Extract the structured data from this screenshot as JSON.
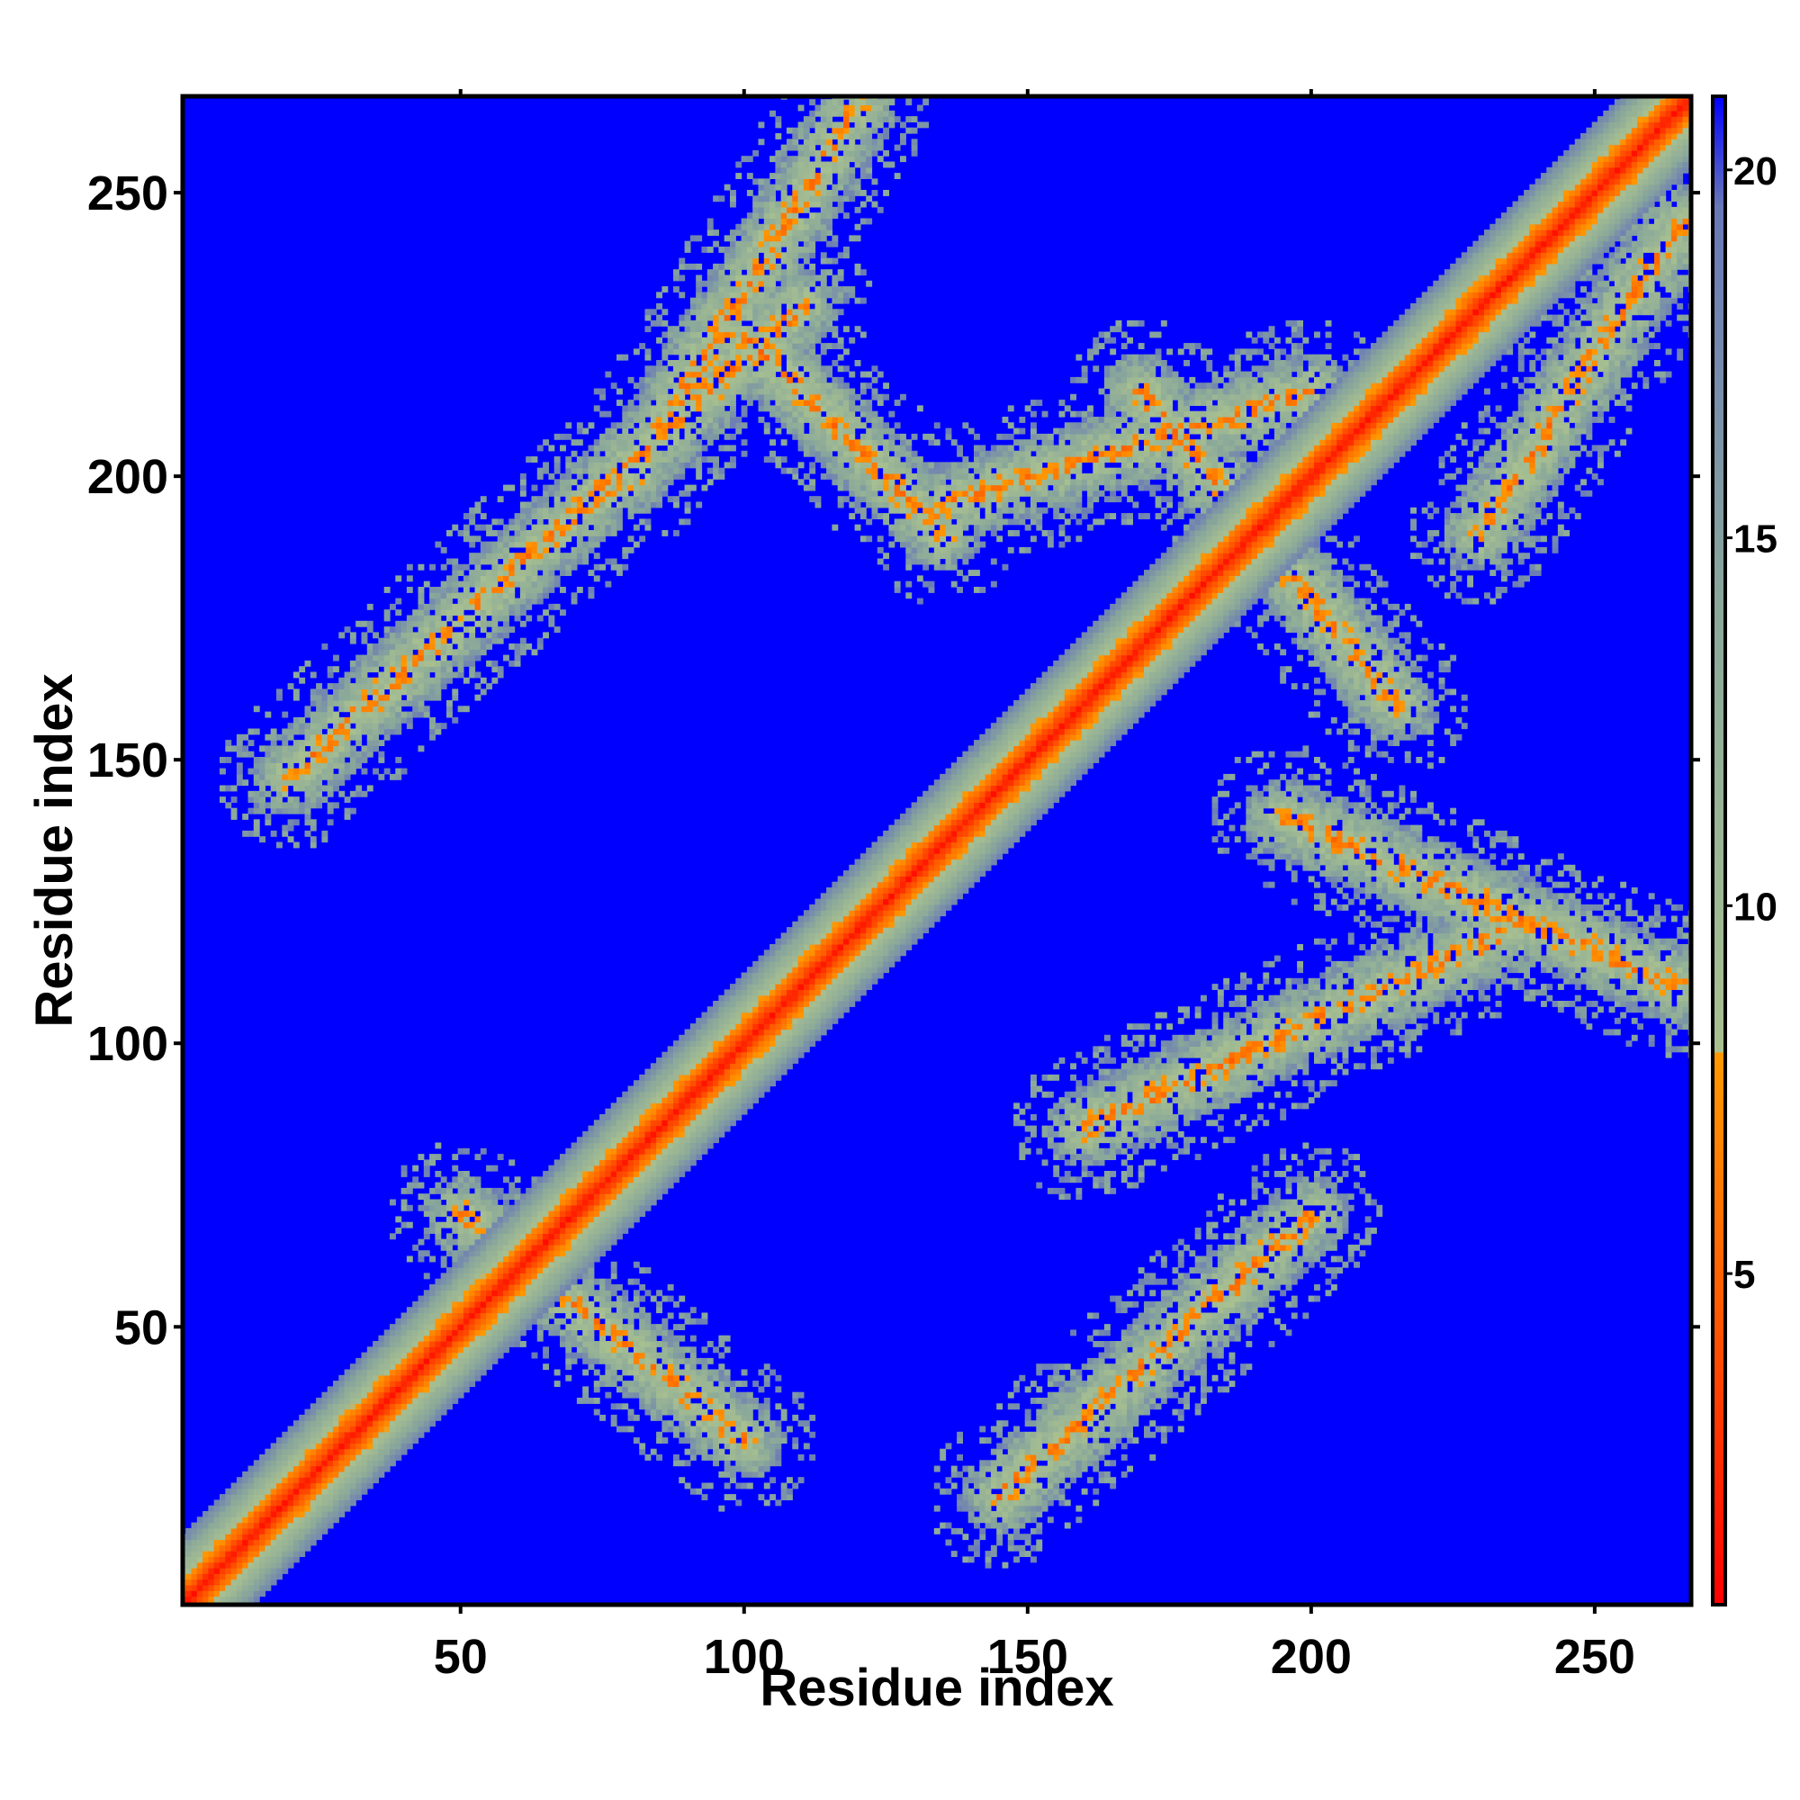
{
  "chart_data": {
    "type": "heatmap",
    "title": "",
    "xlabel": "Residue index",
    "ylabel": "Residue index",
    "xlim": [
      1,
      267
    ],
    "ylim": [
      1,
      267
    ],
    "x_ticks": [
      50,
      100,
      150,
      200,
      250
    ],
    "y_ticks": [
      50,
      100,
      150,
      200,
      250
    ],
    "x_tick_labels": [
      "50",
      "100",
      "150",
      "200",
      "250"
    ],
    "y_tick_labels": [
      "50",
      "100",
      "150",
      "200",
      "250"
    ],
    "colorbar": {
      "range": [
        0.5,
        21
      ],
      "ticks": [
        5,
        10,
        15,
        20
      ],
      "tick_labels": [
        "5",
        "10",
        "15",
        "20"
      ],
      "color_stops": [
        {
          "value": 0.5,
          "color": "#ff0000"
        },
        {
          "value": 4.5,
          "color": "#ff5a00"
        },
        {
          "value": 8.0,
          "color": "#ff9900"
        },
        {
          "value": 8.01,
          "color": "#a8c090"
        },
        {
          "value": 14.0,
          "color": "#8aa89a"
        },
        {
          "value": 19.5,
          "color": "#6878b8"
        },
        {
          "value": 21.0,
          "color": "#0000ff"
        }
      ]
    },
    "background_value": 21,
    "matrix": "symmetric residue-residue distance map (Å); low values along the main diagonal and in off-diagonal contact bands",
    "contact_bands": [
      {
        "from": [
          50,
          70
        ],
        "to": [
          100,
          30
        ],
        "kind": "antiparallel"
      },
      {
        "from": [
          20,
          147
        ],
        "to": [
          110,
          230
        ],
        "kind": "parallel"
      },
      {
        "from": [
          100,
          225
        ],
        "to": [
          135,
          190
        ],
        "kind": "antiparallel"
      },
      {
        "from": [
          120,
          265
        ],
        "to": [
          80,
          200
        ],
        "kind": "antiparallel"
      },
      {
        "from": [
          135,
          195
        ],
        "to": [
          200,
          215
        ],
        "kind": "antiparallel"
      },
      {
        "from": [
          170,
          215
        ],
        "to": [
          215,
          160
        ],
        "kind": "antiparallel"
      },
      {
        "from": [
          145,
          20
        ],
        "to": [
          200,
          70
        ],
        "kind": "parallel"
      },
      {
        "from": [
          195,
          140
        ],
        "to": [
          265,
          110
        ],
        "kind": "antiparallel"
      },
      {
        "from": [
          160,
          85
        ],
        "to": [
          235,
          120
        ],
        "kind": "parallel"
      },
      {
        "from": [
          230,
          190
        ],
        "to": [
          265,
          245
        ],
        "kind": "antiparallel"
      }
    ],
    "legend": "colorbar at right"
  }
}
